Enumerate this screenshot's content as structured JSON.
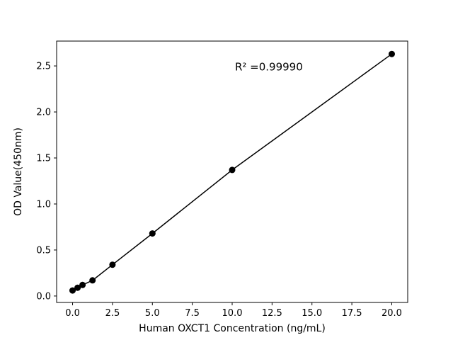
{
  "figure": {
    "background_color": "#ffffff"
  },
  "chart_data": {
    "type": "scatter",
    "title": "",
    "xlabel": "Human OXCT1 Concentration (ng/mL)",
    "ylabel": "OD Value(450nm)",
    "x": [
      0,
      0.313,
      0.625,
      1.25,
      2.5,
      5,
      10,
      20
    ],
    "y": [
      0.06,
      0.09,
      0.12,
      0.17,
      0.34,
      0.68,
      1.37,
      2.63
    ],
    "line": true,
    "marker": "circle",
    "marker_color": "#000000",
    "line_color": "#000000",
    "grid": false,
    "legend": null,
    "xlim": [
      -1,
      21
    ],
    "ylim": [
      -0.07,
      2.77
    ],
    "xticks": [
      0.0,
      2.5,
      5.0,
      7.5,
      10.0,
      12.5,
      15.0,
      17.5,
      20.0
    ],
    "xtick_labels": [
      "0.0",
      "2.5",
      "5.0",
      "7.5",
      "10.0",
      "12.5",
      "15.0",
      "17.5",
      "20.0"
    ],
    "yticks": [
      0.0,
      0.5,
      1.0,
      1.5,
      2.0,
      2.5
    ],
    "ytick_labels": [
      "0.0",
      "0.5",
      "1.0",
      "1.5",
      "2.0",
      "2.5"
    ],
    "annotation": {
      "text": "R² =0.99990",
      "x_data": 12.3,
      "y_data": 2.45
    }
  }
}
